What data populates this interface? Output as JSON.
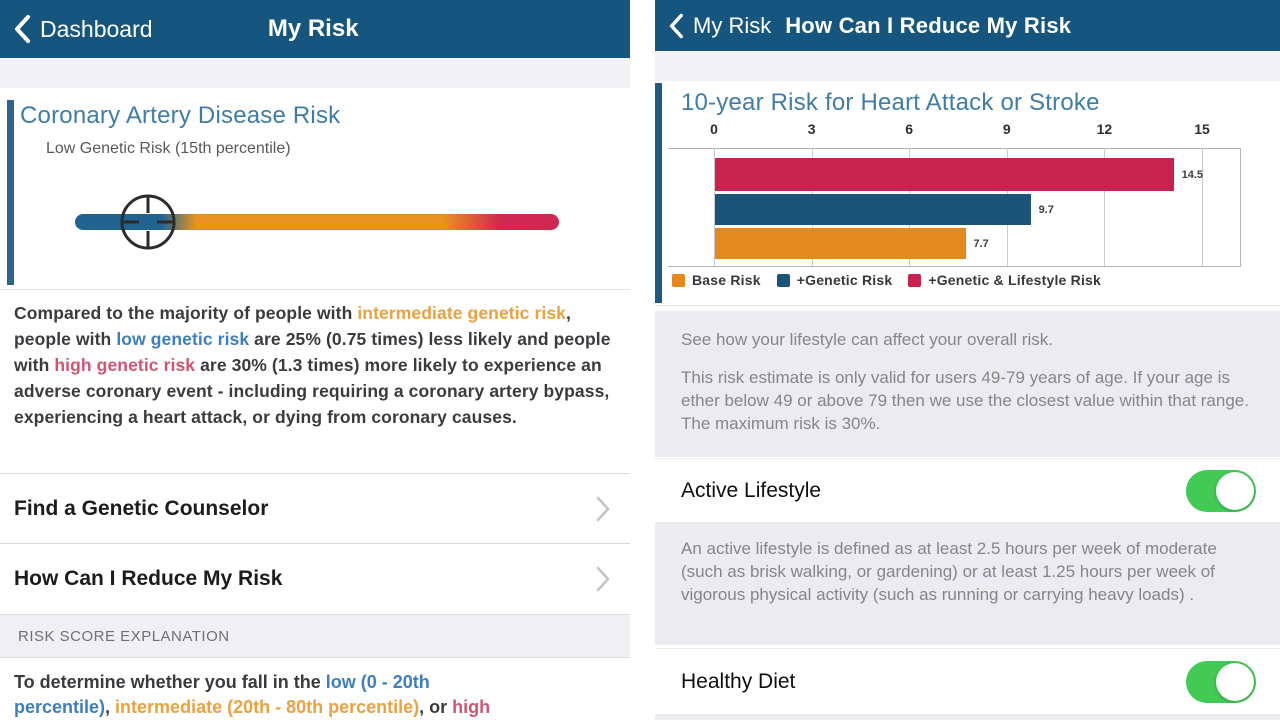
{
  "colors": {
    "nav_bar": "#16567e",
    "heading_blue": "#3e7da7",
    "accent_bar": "#2a6486",
    "bar_orange": "#e5891d",
    "bar_blue": "#1c5479",
    "bar_red": "#c7234e",
    "toggle_green": "#41ca54",
    "gray_box": "#ebebf0"
  },
  "left_screen": {
    "nav": {
      "back_label": "Dashboard",
      "title": "My Risk"
    },
    "card": {
      "title": "Coronary Artery Disease Risk",
      "subtitle": "Low Genetic Risk (15th percentile)",
      "risk_bar": {
        "marker_percentile": 15
      }
    },
    "paragraph": {
      "p1": "Compared to the majority of people with ",
      "s1": "intermediate genetic risk",
      "p2": ", people with ",
      "s2": "low genetic risk",
      "p3": " are 25% (0.75 times) less likely and people with ",
      "s3": "high genetic risk",
      "p4": " are 30% (1.3 times) more likely to experience an adverse coronary event - including requiring a coronary artery bypass, experiencing a heart attack, or dying from coronary causes."
    },
    "menu": [
      {
        "label": "Find a Genetic Counselor"
      },
      {
        "label": "How Can I Reduce My Risk"
      }
    ],
    "section_header": "RISK SCORE EXPLANATION",
    "explanation": {
      "l1_pre": "To determine whether you fall in the ",
      "l1_blue": "low (0 - 20th",
      "l2_blue": "percentile)",
      "l2_sep1": ", ",
      "l2_orange": "intermediate (20th - 80th percentile)",
      "l2_sep2": ", or ",
      "l2_red": "high"
    }
  },
  "right_screen": {
    "nav": {
      "back_label": "My Risk",
      "title": "How Can I Reduce My Risk"
    },
    "chart_heading": "10-year Risk for Heart Attack or Stroke",
    "info_box": {
      "line1": "See how your lifestyle can affect your overall risk.",
      "line2": "This risk estimate is only valid for users 49-79 years of age. If your age is ether below 49 or above 79 then we use the closest value within that range. The maximum risk is 30%."
    },
    "toggles": [
      {
        "label": "Active Lifestyle",
        "state": "on",
        "description": "An active lifestyle is defined as at least 2.5 hours per week of moderate (such as brisk walking, or gardening) or at least 1.25 hours per week of vigorous physical activity (such as running or carrying heavy loads) ."
      },
      {
        "label": "Healthy Diet",
        "state": "on",
        "description": ""
      }
    ]
  },
  "chart_data": {
    "type": "bar",
    "orientation": "horizontal",
    "title": "10-year Risk for Heart Attack or Stroke",
    "series": [
      {
        "name": "+Genetic & Lifestyle Risk",
        "value": 14.5,
        "color": "#c7234e"
      },
      {
        "name": "+Genetic Risk",
        "value": 9.7,
        "color": "#1c5479"
      },
      {
        "name": "Base Risk",
        "value": 7.7,
        "color": "#e5891d"
      }
    ],
    "legend": [
      {
        "label": "Base Risk",
        "color": "#e5891d"
      },
      {
        "label": "+Genetic Risk",
        "color": "#1c5479"
      },
      {
        "label": "+Genetic & Lifestyle Risk",
        "color": "#c7234e"
      }
    ],
    "xlim": [
      0,
      15
    ],
    "ticks": [
      0,
      3,
      6,
      9,
      12,
      15
    ],
    "grid": true,
    "legend_position": "bottom"
  }
}
